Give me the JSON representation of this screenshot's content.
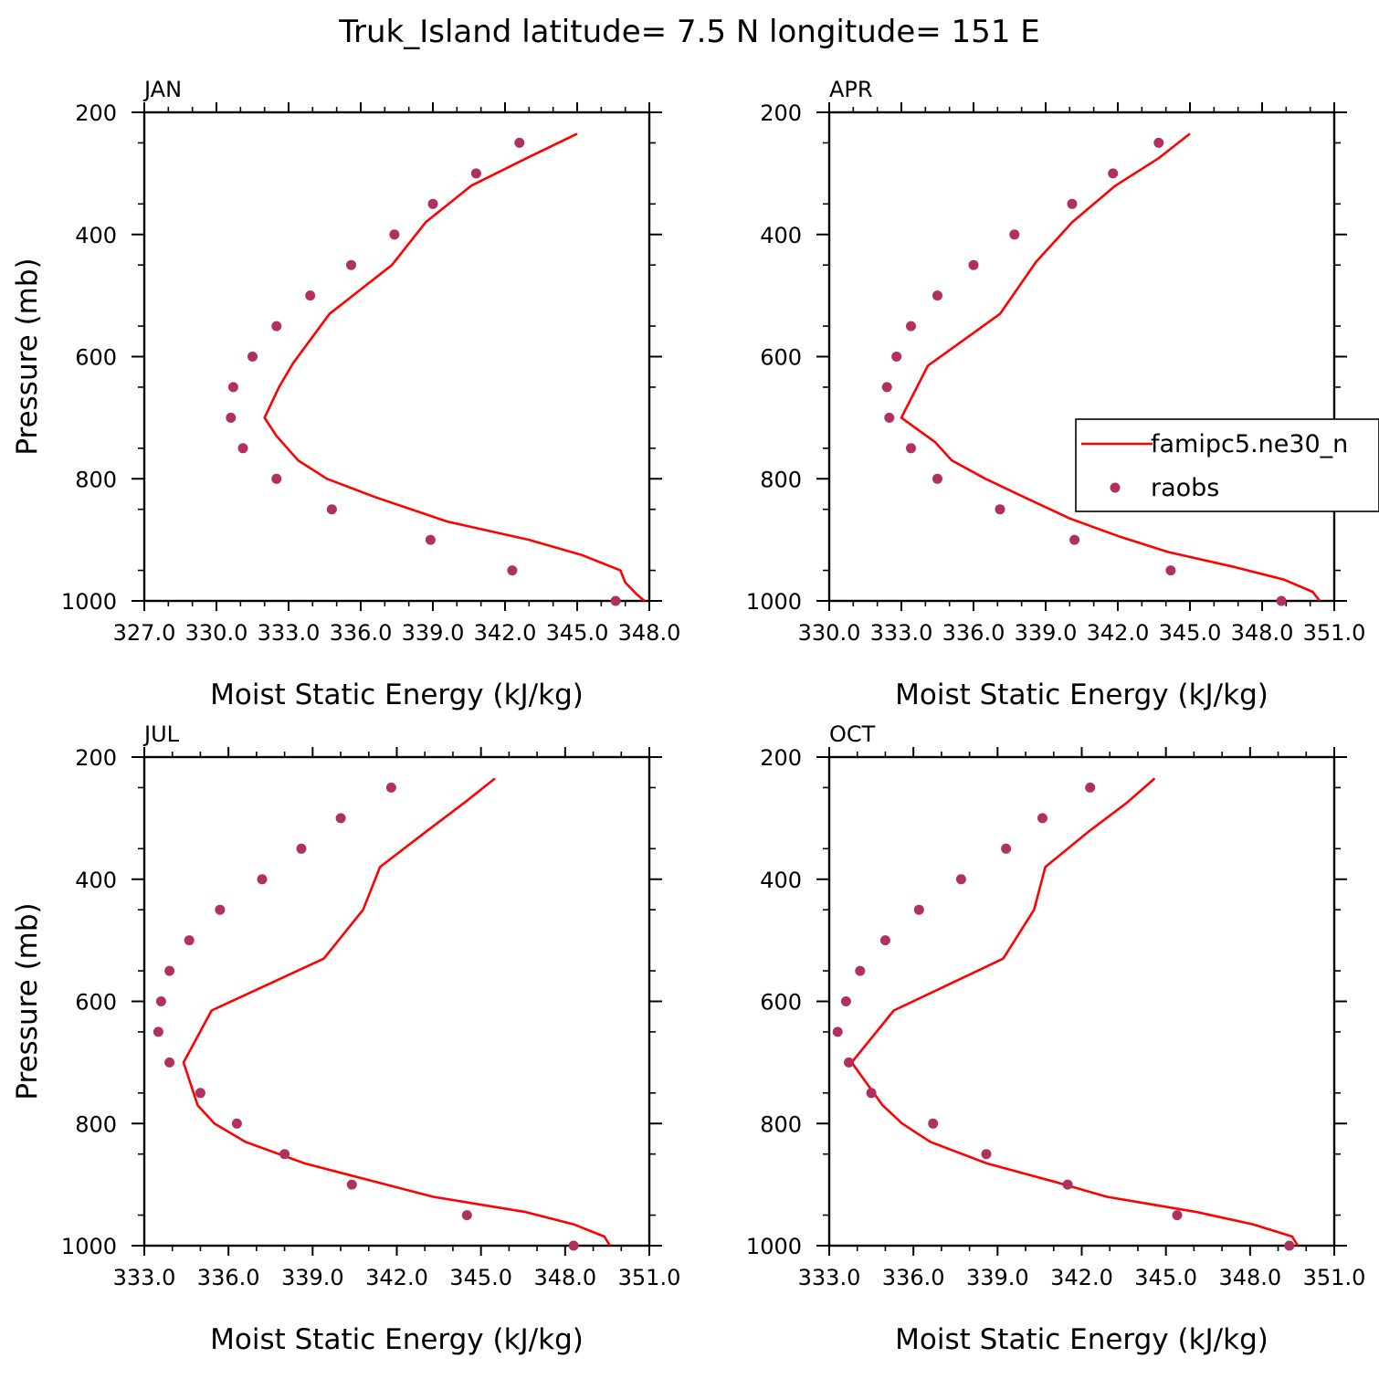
{
  "figure": {
    "title": "Truk_Island  latitude= 7.5 N longitude= 151 E"
  },
  "colors": {
    "model_line": "#ff0000",
    "obs_marker": "#b03060",
    "axes": "#000000"
  },
  "legend": {
    "placement": "right side of APR panel",
    "entries": [
      {
        "label": "famipc5.ne30_n",
        "style": "line"
      },
      {
        "label": "raobs",
        "style": "marker"
      }
    ]
  },
  "chart_data": [
    {
      "type": "line",
      "panel": "JAN",
      "xlabel": "Moist Static Energy (kJ/kg)",
      "ylabel": "Pressure (mb)",
      "xlim": [
        327.0,
        348.0
      ],
      "ylim": [
        200,
        1000
      ],
      "y_inverted": true,
      "xticks": [
        327.0,
        330.0,
        333.0,
        336.0,
        339.0,
        342.0,
        345.0,
        348.0
      ],
      "xtick_labels": [
        "327.0",
        "330.0",
        "333.0",
        "336.0",
        "339.0",
        "342.0",
        "345.0",
        "348.0"
      ],
      "yticks": [
        200,
        400,
        600,
        800,
        1000
      ],
      "series": [
        {
          "name": "famipc5.ne30_n",
          "points": [
            [
              1000,
              347.8
            ],
            [
              990,
              347.5
            ],
            [
              970,
              347.0
            ],
            [
              950,
              346.8
            ],
            [
              925,
              345.2
            ],
            [
              900,
              343.0
            ],
            [
              870,
              339.6
            ],
            [
              830,
              336.6
            ],
            [
              800,
              334.6
            ],
            [
              770,
              333.4
            ],
            [
              730,
              332.5
            ],
            [
              700,
              332.0
            ],
            [
              650,
              332.6
            ],
            [
              610,
              333.2
            ],
            [
              530,
              334.7
            ],
            [
              450,
              337.3
            ],
            [
              380,
              338.7
            ],
            [
              320,
              340.6
            ],
            [
              275,
              342.9
            ],
            [
              235,
              345.0
            ]
          ]
        },
        {
          "name": "raobs",
          "points": [
            [
              1000,
              346.6
            ],
            [
              950,
              342.3
            ],
            [
              900,
              338.9
            ],
            [
              850,
              334.8
            ],
            [
              800,
              332.5
            ],
            [
              750,
              331.1
            ],
            [
              700,
              330.6
            ],
            [
              650,
              330.7
            ],
            [
              600,
              331.5
            ],
            [
              550,
              332.5
            ],
            [
              500,
              333.9
            ],
            [
              450,
              335.6
            ],
            [
              400,
              337.4
            ],
            [
              350,
              339.0
            ],
            [
              300,
              340.8
            ],
            [
              250,
              342.6
            ]
          ]
        }
      ]
    },
    {
      "type": "line",
      "panel": "APR",
      "xlabel": "Moist Static Energy (kJ/kg)",
      "ylabel": "",
      "xlim": [
        330.0,
        351.0
      ],
      "ylim": [
        200,
        1000
      ],
      "y_inverted": true,
      "xticks": [
        330.0,
        333.0,
        336.0,
        339.0,
        342.0,
        345.0,
        348.0,
        351.0
      ],
      "xtick_labels": [
        "330.0",
        "333.0",
        "336.0",
        "339.0",
        "342.0",
        "345.0",
        "348.0",
        "351.0"
      ],
      "yticks": [
        200,
        400,
        600,
        800,
        1000
      ],
      "series": [
        {
          "name": "famipc5.ne30_n",
          "points": [
            [
              1000,
              350.4
            ],
            [
              985,
              350.1
            ],
            [
              965,
              348.9
            ],
            [
              945,
              346.9
            ],
            [
              920,
              344.1
            ],
            [
              895,
              342.1
            ],
            [
              865,
              340.0
            ],
            [
              830,
              338.1
            ],
            [
              800,
              336.5
            ],
            [
              770,
              335.1
            ],
            [
              740,
              334.4
            ],
            [
              700,
              333.0
            ],
            [
              615,
              334.1
            ],
            [
              530,
              337.1
            ],
            [
              445,
              338.6
            ],
            [
              380,
              340.1
            ],
            [
              320,
              341.9
            ],
            [
              275,
              343.7
            ],
            [
              235,
              345.0
            ]
          ]
        },
        {
          "name": "raobs",
          "points": [
            [
              1000,
              348.8
            ],
            [
              950,
              344.2
            ],
            [
              900,
              340.2
            ],
            [
              850,
              337.1
            ],
            [
              800,
              334.5
            ],
            [
              750,
              333.4
            ],
            [
              700,
              332.5
            ],
            [
              650,
              332.4
            ],
            [
              600,
              332.8
            ],
            [
              550,
              333.4
            ],
            [
              500,
              334.5
            ],
            [
              450,
              336.0
            ],
            [
              400,
              337.7
            ],
            [
              350,
              340.1
            ],
            [
              300,
              341.8
            ],
            [
              250,
              343.7
            ]
          ]
        }
      ]
    },
    {
      "type": "line",
      "panel": "JUL",
      "xlabel": "Moist Static Energy (kJ/kg)",
      "ylabel": "Pressure (mb)",
      "xlim": [
        333.0,
        351.0
      ],
      "ylim": [
        200,
        1000
      ],
      "y_inverted": true,
      "xticks": [
        333.0,
        336.0,
        339.0,
        342.0,
        345.0,
        348.0,
        351.0
      ],
      "xtick_labels": [
        "333.0",
        "336.0",
        "339.0",
        "342.0",
        "345.0",
        "348.0",
        "351.0"
      ],
      "yticks": [
        200,
        400,
        600,
        800,
        1000
      ],
      "series": [
        {
          "name": "famipc5.ne30_n",
          "points": [
            [
              1000,
              349.6
            ],
            [
              985,
              349.4
            ],
            [
              965,
              348.3
            ],
            [
              945,
              346.6
            ],
            [
              920,
              343.3
            ],
            [
              895,
              341.2
            ],
            [
              865,
              338.7
            ],
            [
              830,
              336.6
            ],
            [
              800,
              335.5
            ],
            [
              770,
              334.9
            ],
            [
              700,
              334.4
            ],
            [
              615,
              335.4
            ],
            [
              530,
              339.4
            ],
            [
              450,
              340.8
            ],
            [
              380,
              341.4
            ],
            [
              320,
              343.1
            ],
            [
              275,
              344.4
            ],
            [
              235,
              345.5
            ]
          ]
        },
        {
          "name": "raobs",
          "points": [
            [
              1000,
              348.3
            ],
            [
              950,
              344.5
            ],
            [
              900,
              340.4
            ],
            [
              850,
              338.0
            ],
            [
              800,
              336.3
            ],
            [
              750,
              335.0
            ],
            [
              700,
              333.9
            ],
            [
              650,
              333.5
            ],
            [
              600,
              333.6
            ],
            [
              550,
              333.9
            ],
            [
              500,
              334.6
            ],
            [
              450,
              335.7
            ],
            [
              400,
              337.2
            ],
            [
              350,
              338.6
            ],
            [
              300,
              340.0
            ],
            [
              250,
              341.8
            ]
          ]
        }
      ]
    },
    {
      "type": "line",
      "panel": "OCT",
      "xlabel": "Moist Static Energy (kJ/kg)",
      "ylabel": "",
      "xlim": [
        333.0,
        351.0
      ],
      "ylim": [
        200,
        1000
      ],
      "y_inverted": true,
      "xticks": [
        333.0,
        336.0,
        339.0,
        342.0,
        345.0,
        348.0,
        351.0
      ],
      "xtick_labels": [
        "333.0",
        "336.0",
        "339.0",
        "342.0",
        "345.0",
        "348.0",
        "351.0"
      ],
      "yticks": [
        200,
        400,
        600,
        800,
        1000
      ],
      "series": [
        {
          "name": "famipc5.ne30_n",
          "points": [
            [
              1000,
              349.7
            ],
            [
              985,
              349.5
            ],
            [
              965,
              348.1
            ],
            [
              945,
              346.1
            ],
            [
              920,
              342.9
            ],
            [
              895,
              341.0
            ],
            [
              865,
              338.6
            ],
            [
              830,
              336.6
            ],
            [
              800,
              335.6
            ],
            [
              770,
              334.9
            ],
            [
              700,
              333.8
            ],
            [
              615,
              335.3
            ],
            [
              530,
              339.2
            ],
            [
              450,
              340.3
            ],
            [
              380,
              340.7
            ],
            [
              320,
              342.3
            ],
            [
              275,
              343.6
            ],
            [
              235,
              344.6
            ]
          ]
        },
        {
          "name": "raobs",
          "points": [
            [
              1000,
              349.4
            ],
            [
              950,
              345.4
            ],
            [
              900,
              341.5
            ],
            [
              850,
              338.6
            ],
            [
              800,
              336.7
            ],
            [
              750,
              334.5
            ],
            [
              700,
              333.7
            ],
            [
              650,
              333.3
            ],
            [
              600,
              333.6
            ],
            [
              550,
              334.1
            ],
            [
              500,
              335.0
            ],
            [
              450,
              336.2
            ],
            [
              400,
              337.7
            ],
            [
              350,
              339.3
            ],
            [
              300,
              340.6
            ],
            [
              250,
              342.3
            ]
          ]
        }
      ]
    }
  ]
}
